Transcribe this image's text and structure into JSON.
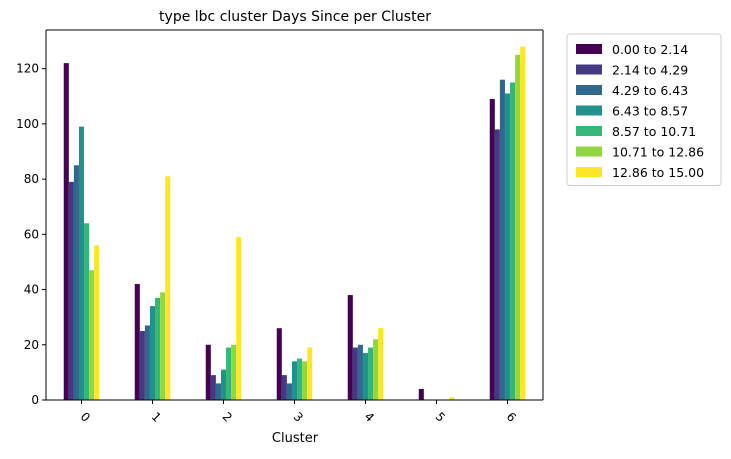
{
  "chart_data": {
    "type": "bar",
    "title": "type lbc cluster Days Since per Cluster",
    "xlabel": "Cluster",
    "ylabel": "",
    "categories": [
      "0",
      "1",
      "2",
      "3",
      "4",
      "5",
      "6"
    ],
    "ylim": [
      0,
      134
    ],
    "yticks": [
      0,
      20,
      40,
      60,
      80,
      100,
      120
    ],
    "grid": false,
    "legend_position": "outside-top-right",
    "series": [
      {
        "name": "0.00 to 2.14",
        "color": "#440154",
        "values": [
          122,
          42,
          20,
          26,
          38,
          4,
          109
        ]
      },
      {
        "name": "2.14 to 4.29",
        "color": "#443983",
        "values": [
          79,
          25,
          9,
          9,
          19,
          0,
          98
        ]
      },
      {
        "name": "4.29 to 6.43",
        "color": "#31688e",
        "values": [
          85,
          27,
          6,
          6,
          20,
          0,
          116
        ]
      },
      {
        "name": "6.43 to 8.57",
        "color": "#21918c",
        "values": [
          99,
          34,
          11,
          14,
          17,
          0,
          111
        ]
      },
      {
        "name": "8.57 to 10.71",
        "color": "#35b779",
        "values": [
          64,
          37,
          19,
          15,
          19,
          0,
          115
        ]
      },
      {
        "name": "10.71 to 12.86",
        "color": "#90d743",
        "values": [
          47,
          39,
          20,
          14,
          22,
          0,
          125
        ]
      },
      {
        "name": "12.86 to 15.00",
        "color": "#fde725",
        "values": [
          56,
          81,
          59,
          19,
          26,
          1,
          128
        ]
      }
    ]
  }
}
